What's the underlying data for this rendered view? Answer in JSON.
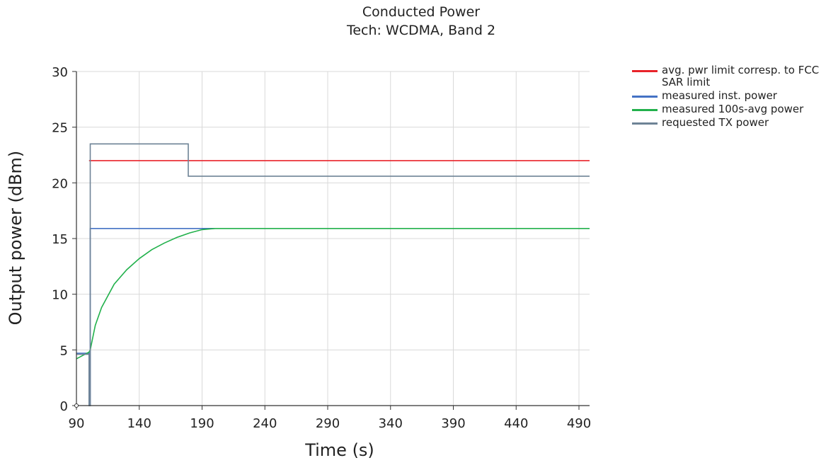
{
  "chart_data": {
    "type": "line",
    "title": "Conducted Power",
    "subtitle": "Tech: WCDMA, Band 2",
    "xlabel": "Time (s)",
    "ylabel": "Output power (dBm)",
    "xlim": [
      90,
      500
    ],
    "ylim": [
      0,
      30
    ],
    "xticks": [
      90,
      140,
      190,
      240,
      290,
      340,
      390,
      440,
      490
    ],
    "yticks": [
      0,
      5,
      10,
      15,
      20,
      25,
      30
    ],
    "grid": true,
    "legend_position": "right",
    "series": [
      {
        "name": "avg. pwr limit corresp. to FCC SAR limit",
        "color": "#e8232a",
        "x": [
          100,
          500
        ],
        "y": [
          22.0,
          22.0
        ]
      },
      {
        "name": "measured inst. power",
        "color": "#4472c4",
        "x": [
          90,
          100,
          100,
          101,
          101,
          200
        ],
        "y": [
          4.7,
          4.7,
          0,
          0,
          15.9,
          15.9
        ]
      },
      {
        "name": "measured 100s-avg power",
        "color": "#22b14c",
        "x": [
          90,
          95,
          100,
          101,
          105,
          110,
          120,
          130,
          140,
          150,
          160,
          170,
          180,
          190,
          200,
          500
        ],
        "y": [
          4.2,
          4.5,
          4.8,
          5.0,
          7.2,
          8.8,
          10.9,
          12.2,
          13.2,
          14.0,
          14.6,
          15.1,
          15.5,
          15.8,
          15.9,
          15.9
        ]
      },
      {
        "name": "requested TX power",
        "color": "#6e8396",
        "x": [
          90,
          100,
          100,
          101,
          101,
          179,
          179,
          500
        ],
        "y": [
          4.6,
          4.6,
          0,
          0,
          23.5,
          23.5,
          20.6,
          20.6
        ]
      }
    ]
  }
}
